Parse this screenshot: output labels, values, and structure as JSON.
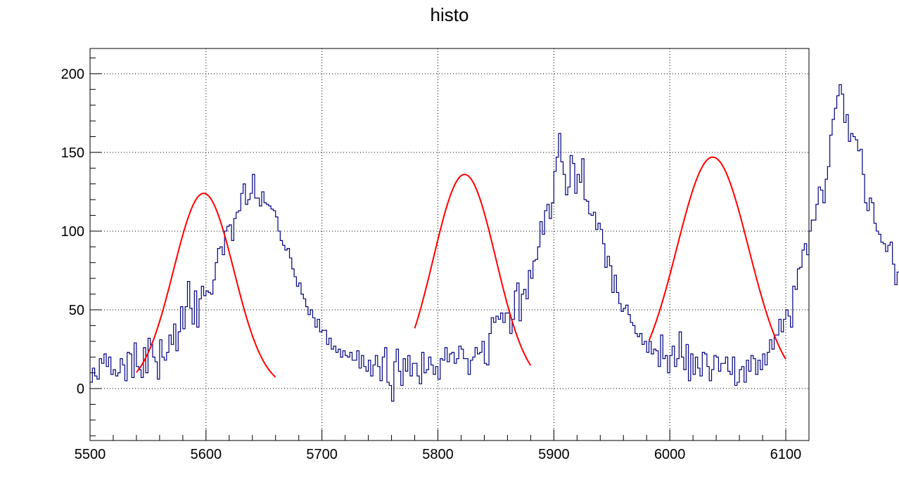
{
  "chart_data": {
    "type": "line",
    "title": "histo",
    "xlabel": "",
    "ylabel": "",
    "xlim": [
      5500,
      6120
    ],
    "ylim": [
      -33,
      216
    ],
    "xticks": [
      5500,
      5600,
      5700,
      5800,
      5900,
      6000,
      6100
    ],
    "yticks": [
      0,
      50,
      100,
      150,
      200
    ],
    "grid": true,
    "colors": {
      "histogram": "#000080",
      "fit": "#ff0000",
      "grid": "#000000",
      "frame": "#000000"
    },
    "histogram": {
      "bin_width": 2,
      "x_start": 5500,
      "values": [
        4,
        13,
        8,
        6,
        19,
        16,
        22,
        14,
        20,
        9,
        12,
        8,
        10,
        19,
        15,
        5,
        23,
        22,
        7,
        29,
        14,
        12,
        7,
        26,
        10,
        32,
        28,
        20,
        17,
        6,
        31,
        20,
        18,
        23,
        34,
        28,
        41,
        24,
        36,
        52,
        38,
        52,
        68,
        51,
        41,
        62,
        39,
        57,
        65,
        59,
        62,
        61,
        60,
        69,
        80,
        89,
        90,
        85,
        100,
        103,
        104,
        94,
        108,
        112,
        113,
        124,
        130,
        117,
        120,
        124,
        136,
        121,
        121,
        116,
        125,
        118,
        117,
        116,
        114,
        113,
        109,
        100,
        94,
        91,
        88,
        89,
        83,
        76,
        71,
        65,
        67,
        60,
        57,
        52,
        47,
        50,
        45,
        39,
        44,
        36,
        37,
        37,
        28,
        32,
        25,
        27,
        23,
        25,
        20,
        24,
        21,
        20,
        23,
        18,
        18,
        24,
        13,
        21,
        14,
        11,
        18,
        8,
        15,
        21,
        14,
        5,
        20,
        26,
        4,
        2,
        -8,
        17,
        25,
        11,
        2,
        19,
        11,
        21,
        8,
        16,
        16,
        8,
        3,
        23,
        10,
        12,
        20,
        15,
        9,
        14,
        6,
        19,
        18,
        26,
        17,
        22,
        23,
        16,
        19,
        27,
        25,
        19,
        19,
        9,
        18,
        20,
        26,
        22,
        23,
        30,
        16,
        15,
        35,
        45,
        42,
        46,
        44,
        48,
        42,
        48,
        48,
        35,
        44,
        62,
        67,
        43,
        60,
        63,
        57,
        75,
        70,
        81,
        82,
        90,
        106,
        98,
        113,
        117,
        108,
        118,
        138,
        147,
        162,
        144,
        136,
        123,
        128,
        148,
        143,
        124,
        136,
        131,
        146,
        120,
        119,
        111,
        110,
        112,
        101,
        105,
        101,
        92,
        77,
        84,
        78,
        61,
        72,
        61,
        54,
        49,
        51,
        53,
        47,
        42,
        40,
        35,
        33,
        35,
        28,
        30,
        23,
        30,
        22,
        25,
        24,
        14,
        34,
        19,
        21,
        10,
        21,
        27,
        14,
        19,
        36,
        20,
        12,
        28,
        5,
        22,
        9,
        20,
        13,
        8,
        23,
        22,
        14,
        5,
        12,
        21,
        20,
        11,
        16,
        16,
        20,
        11,
        9,
        20,
        2,
        4,
        12,
        14,
        4,
        18,
        11,
        21,
        19,
        9,
        18,
        12,
        22,
        15,
        23,
        31,
        25,
        34,
        34,
        44,
        36,
        44,
        50,
        46,
        39,
        65,
        63,
        76,
        77,
        88,
        92,
        85,
        100,
        107,
        107,
        117,
        128,
        126,
        118,
        133,
        141,
        161,
        171,
        178,
        186,
        193,
        187,
        169,
        174,
        157,
        162,
        160,
        158,
        151,
        152,
        136,
        118,
        113,
        121,
        118,
        105,
        100,
        98,
        93,
        92,
        87,
        91,
        93,
        79,
        66,
        74,
        70,
        67,
        70,
        56,
        41,
        46,
        48,
        49,
        52,
        40,
        37,
        33,
        27,
        28,
        17,
        20,
        23,
        26,
        31,
        33,
        22,
        26,
        13,
        27,
        9,
        8,
        2,
        7,
        12,
        21,
        34
      ]
    },
    "fits": [
      {
        "name": "",
        "function": "gaus",
        "constant": 124,
        "mean": 5598,
        "sigma": 26,
        "range": [
          5540,
          5660
        ]
      },
      {
        "name": "",
        "function": "gaus",
        "constant": 136,
        "mean": 5823,
        "sigma": 27,
        "range": [
          5780,
          5880
        ]
      },
      {
        "name": "",
        "function": "gaus",
        "constant": 147,
        "mean": 6037,
        "sigma": 31,
        "range": [
          5982,
          6100
        ]
      }
    ]
  }
}
